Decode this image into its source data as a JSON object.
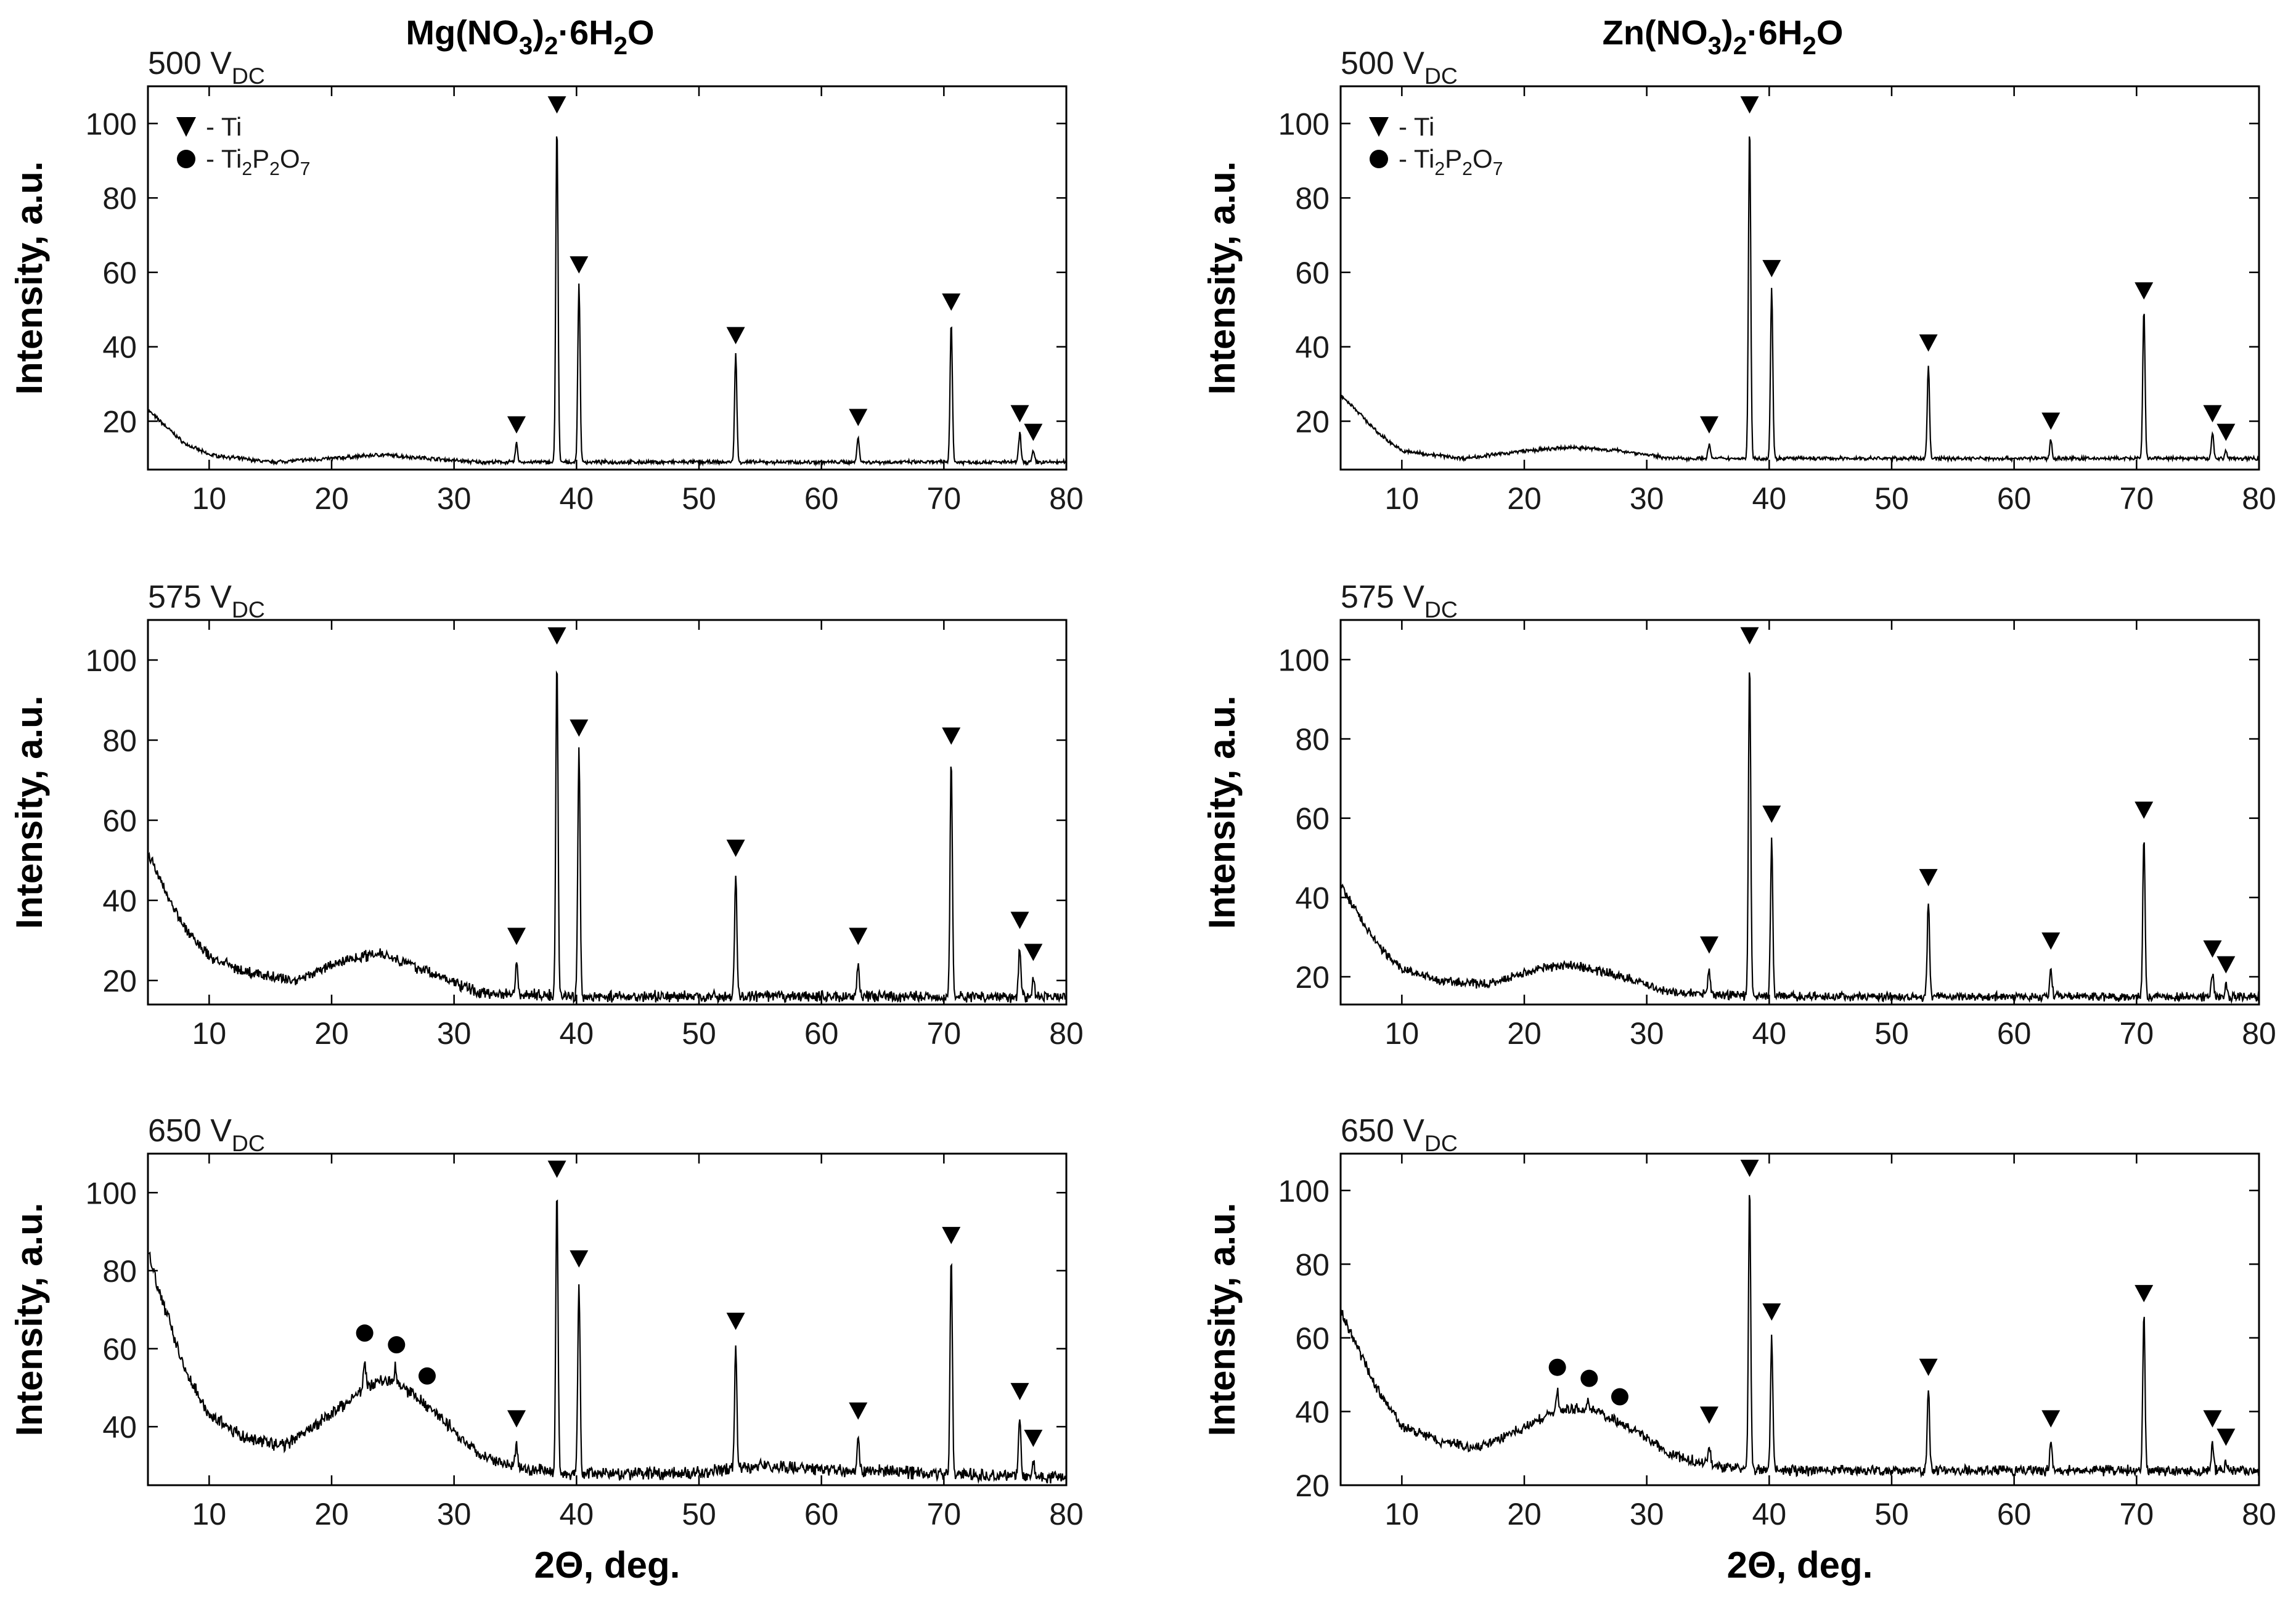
{
  "chart_data": [
    {
      "type": "line",
      "title": "Mg(NO3)2·6H2O",
      "voltage_label": "500 V",
      "voltage_sub": "DC",
      "xlabel": "",
      "ylabel": "Intensity, a.u.",
      "xlim": [
        5,
        80
      ],
      "ylim": [
        7,
        110
      ],
      "xticks": [
        10,
        20,
        30,
        40,
        50,
        60,
        70,
        80
      ],
      "yticks": [
        20,
        40,
        60,
        80,
        100
      ],
      "legend": [
        "- Ti",
        "- Ti2P2O7"
      ],
      "background": [
        [
          5,
          23
        ],
        [
          6,
          20
        ],
        [
          8,
          14
        ],
        [
          10,
          11
        ],
        [
          15,
          9
        ],
        [
          20,
          10
        ],
        [
          24,
          11
        ],
        [
          28,
          10
        ],
        [
          32,
          9
        ],
        [
          40,
          9
        ],
        [
          80,
          9
        ]
      ],
      "peaks": [
        {
          "x": 35.1,
          "y": 14
        },
        {
          "x": 38.4,
          "y": 100
        },
        {
          "x": 40.2,
          "y": 57
        },
        {
          "x": 53.0,
          "y": 38
        },
        {
          "x": 63.0,
          "y": 16
        },
        {
          "x": 70.6,
          "y": 47
        },
        {
          "x": 76.2,
          "y": 17
        },
        {
          "x": 77.3,
          "y": 12
        }
      ],
      "ti_markers": [
        {
          "x": 35.1,
          "y": 19
        },
        {
          "x": 38.4,
          "y": 105
        },
        {
          "x": 40.2,
          "y": 62
        },
        {
          "x": 53.0,
          "y": 43
        },
        {
          "x": 63.0,
          "y": 21
        },
        {
          "x": 70.6,
          "y": 52
        },
        {
          "x": 76.2,
          "y": 22
        },
        {
          "x": 77.3,
          "y": 17
        }
      ],
      "ti2p2o7_markers": [],
      "noise": 0.4
    },
    {
      "type": "line",
      "title": "Zn(NO3)2·6H2O",
      "voltage_label": "500 V",
      "voltage_sub": "DC",
      "xlabel": "",
      "ylabel": "Intensity, a.u.",
      "xlim": [
        5,
        80
      ],
      "ylim": [
        7,
        110
      ],
      "xticks": [
        10,
        20,
        30,
        40,
        50,
        60,
        70,
        80
      ],
      "yticks": [
        20,
        40,
        60,
        80,
        100
      ],
      "legend": [
        "- Ti",
        "- Ti2P2O7"
      ],
      "background": [
        [
          5,
          27
        ],
        [
          6,
          24
        ],
        [
          8,
          17
        ],
        [
          10,
          12
        ],
        [
          15,
          10
        ],
        [
          20,
          12
        ],
        [
          24,
          13
        ],
        [
          28,
          12
        ],
        [
          32,
          10
        ],
        [
          40,
          10
        ],
        [
          80,
          10
        ]
      ],
      "peaks": [
        {
          "x": 35.1,
          "y": 14
        },
        {
          "x": 38.4,
          "y": 100
        },
        {
          "x": 40.2,
          "y": 56
        },
        {
          "x": 53.0,
          "y": 35
        },
        {
          "x": 63.0,
          "y": 15
        },
        {
          "x": 70.6,
          "y": 50
        },
        {
          "x": 76.2,
          "y": 17
        },
        {
          "x": 77.3,
          "y": 12
        }
      ],
      "ti_markers": [
        {
          "x": 35.1,
          "y": 19
        },
        {
          "x": 38.4,
          "y": 105
        },
        {
          "x": 40.2,
          "y": 61
        },
        {
          "x": 53.0,
          "y": 41
        },
        {
          "x": 63.0,
          "y": 20
        },
        {
          "x": 70.6,
          "y": 55
        },
        {
          "x": 76.2,
          "y": 22
        },
        {
          "x": 77.3,
          "y": 17
        }
      ],
      "ti2p2o7_markers": [],
      "noise": 0.4
    },
    {
      "type": "line",
      "title": "",
      "voltage_label": "575 V",
      "voltage_sub": "DC",
      "xlabel": "",
      "ylabel": "Intensity, a.u.",
      "xlim": [
        5,
        80
      ],
      "ylim": [
        14,
        110
      ],
      "xticks": [
        10,
        20,
        30,
        40,
        50,
        60,
        70,
        80
      ],
      "yticks": [
        20,
        40,
        60,
        80,
        100
      ],
      "legend": [],
      "background": [
        [
          5,
          52
        ],
        [
          6,
          45
        ],
        [
          8,
          33
        ],
        [
          10,
          26
        ],
        [
          13,
          22
        ],
        [
          17,
          20
        ],
        [
          21,
          25
        ],
        [
          24,
          27
        ],
        [
          28,
          22
        ],
        [
          32,
          17
        ],
        [
          40,
          16
        ],
        [
          80,
          16
        ]
      ],
      "peaks": [
        {
          "x": 35.1,
          "y": 25
        },
        {
          "x": 38.4,
          "y": 100
        },
        {
          "x": 40.2,
          "y": 77
        },
        {
          "x": 53.0,
          "y": 47
        },
        {
          "x": 63.0,
          "y": 25
        },
        {
          "x": 70.6,
          "y": 75
        },
        {
          "x": 76.2,
          "y": 29
        },
        {
          "x": 77.3,
          "y": 21
        }
      ],
      "ti_markers": [
        {
          "x": 35.1,
          "y": 31
        },
        {
          "x": 38.4,
          "y": 106
        },
        {
          "x": 40.2,
          "y": 83
        },
        {
          "x": 53.0,
          "y": 53
        },
        {
          "x": 63.0,
          "y": 31
        },
        {
          "x": 70.6,
          "y": 81
        },
        {
          "x": 76.2,
          "y": 35
        },
        {
          "x": 77.3,
          "y": 27
        }
      ],
      "ti2p2o7_markers": [],
      "noise": 1.1
    },
    {
      "type": "line",
      "title": "",
      "voltage_label": "575 V",
      "voltage_sub": "DC",
      "xlabel": "",
      "ylabel": "Intensity, a.u.",
      "xlim": [
        5,
        80
      ],
      "ylim": [
        13,
        110
      ],
      "xticks": [
        10,
        20,
        30,
        40,
        50,
        60,
        70,
        80
      ],
      "yticks": [
        20,
        40,
        60,
        80,
        100
      ],
      "legend": [],
      "background": [
        [
          5,
          43
        ],
        [
          6,
          38
        ],
        [
          8,
          28
        ],
        [
          10,
          22
        ],
        [
          13,
          19
        ],
        [
          17,
          18
        ],
        [
          21,
          22
        ],
        [
          24,
          23
        ],
        [
          28,
          20
        ],
        [
          32,
          16
        ],
        [
          40,
          15
        ],
        [
          80,
          15
        ]
      ],
      "peaks": [
        {
          "x": 35.1,
          "y": 22
        },
        {
          "x": 38.4,
          "y": 100
        },
        {
          "x": 40.2,
          "y": 55
        },
        {
          "x": 53.0,
          "y": 39
        },
        {
          "x": 63.0,
          "y": 23
        },
        {
          "x": 70.6,
          "y": 56
        },
        {
          "x": 76.2,
          "y": 21
        },
        {
          "x": 77.3,
          "y": 18
        }
      ],
      "ti_markers": [
        {
          "x": 35.1,
          "y": 28
        },
        {
          "x": 38.4,
          "y": 106
        },
        {
          "x": 40.2,
          "y": 61
        },
        {
          "x": 53.0,
          "y": 45
        },
        {
          "x": 63.0,
          "y": 29
        },
        {
          "x": 70.6,
          "y": 62
        },
        {
          "x": 76.2,
          "y": 27
        },
        {
          "x": 77.3,
          "y": 23
        }
      ],
      "ti2p2o7_markers": [],
      "noise": 0.9
    },
    {
      "type": "line",
      "title": "",
      "voltage_label": "650 V",
      "voltage_sub": "DC",
      "xlabel": "2Θ, deg.",
      "ylabel": "Intensity, a.u.",
      "xlim": [
        5,
        80
      ],
      "ylim": [
        25,
        110
      ],
      "xticks": [
        10,
        20,
        30,
        40,
        50,
        60,
        70,
        80
      ],
      "yticks": [
        40,
        60,
        80,
        100
      ],
      "legend": [],
      "background": [
        [
          5,
          85
        ],
        [
          6,
          74
        ],
        [
          8,
          55
        ],
        [
          10,
          43
        ],
        [
          13,
          37
        ],
        [
          16,
          35
        ],
        [
          19,
          41
        ],
        [
          22,
          48
        ],
        [
          24,
          52
        ],
        [
          26,
          50
        ],
        [
          29,
          42
        ],
        [
          32,
          33
        ],
        [
          36,
          29
        ],
        [
          40,
          28
        ],
        [
          50,
          28
        ],
        [
          55,
          30
        ],
        [
          60,
          29
        ],
        [
          80,
          27
        ]
      ],
      "peaks": [
        {
          "x": 22.7,
          "y": 58
        },
        {
          "x": 25.2,
          "y": 55
        },
        {
          "x": 35.1,
          "y": 35
        },
        {
          "x": 38.4,
          "y": 100
        },
        {
          "x": 40.2,
          "y": 77
        },
        {
          "x": 53.0,
          "y": 61
        },
        {
          "x": 63.0,
          "y": 38
        },
        {
          "x": 70.6,
          "y": 83
        },
        {
          "x": 76.2,
          "y": 43
        },
        {
          "x": 77.3,
          "y": 31
        }
      ],
      "ti_markers": [
        {
          "x": 35.1,
          "y": 42
        },
        {
          "x": 38.4,
          "y": 106
        },
        {
          "x": 40.2,
          "y": 83
        },
        {
          "x": 53.0,
          "y": 67
        },
        {
          "x": 63.0,
          "y": 44
        },
        {
          "x": 70.6,
          "y": 89
        },
        {
          "x": 76.2,
          "y": 49
        },
        {
          "x": 77.3,
          "y": 37
        }
      ],
      "ti2p2o7_markers": [
        {
          "x": 22.7,
          "y": 64
        },
        {
          "x": 25.3,
          "y": 61
        },
        {
          "x": 27.8,
          "y": 53
        }
      ],
      "noise": 1.3
    },
    {
      "type": "line",
      "title": "",
      "voltage_label": "650 V",
      "voltage_sub": "DC",
      "xlabel": "2Θ, deg.",
      "ylabel": "Intensity, a.u.",
      "xlim": [
        5,
        80
      ],
      "ylim": [
        20,
        110
      ],
      "xticks": [
        10,
        20,
        30,
        40,
        50,
        60,
        70,
        80
      ],
      "yticks": [
        20,
        40,
        60,
        80,
        100
      ],
      "legend": [],
      "background": [
        [
          5,
          67
        ],
        [
          6,
          60
        ],
        [
          8,
          46
        ],
        [
          10,
          36
        ],
        [
          13,
          32
        ],
        [
          16,
          30
        ],
        [
          19,
          34
        ],
        [
          22,
          39
        ],
        [
          24,
          41
        ],
        [
          26,
          40
        ],
        [
          29,
          35
        ],
        [
          32,
          28
        ],
        [
          36,
          25
        ],
        [
          40,
          24
        ],
        [
          80,
          24
        ]
      ],
      "peaks": [
        {
          "x": 22.7,
          "y": 46
        },
        {
          "x": 25.2,
          "y": 43
        },
        {
          "x": 35.1,
          "y": 31
        },
        {
          "x": 38.4,
          "y": 100
        },
        {
          "x": 40.2,
          "y": 61
        },
        {
          "x": 53.0,
          "y": 46
        },
        {
          "x": 63.0,
          "y": 32
        },
        {
          "x": 70.6,
          "y": 66
        },
        {
          "x": 76.2,
          "y": 32
        },
        {
          "x": 77.3,
          "y": 27
        }
      ],
      "ti_markers": [
        {
          "x": 35.1,
          "y": 39
        },
        {
          "x": 38.4,
          "y": 106
        },
        {
          "x": 40.2,
          "y": 67
        },
        {
          "x": 53.0,
          "y": 52
        },
        {
          "x": 63.0,
          "y": 38
        },
        {
          "x": 70.6,
          "y": 72
        },
        {
          "x": 76.2,
          "y": 38
        },
        {
          "x": 77.3,
          "y": 33
        }
      ],
      "ti2p2o7_markers": [
        {
          "x": 22.7,
          "y": 52
        },
        {
          "x": 25.3,
          "y": 49
        },
        {
          "x": 27.8,
          "y": 44
        }
      ],
      "noise": 1.1
    }
  ]
}
